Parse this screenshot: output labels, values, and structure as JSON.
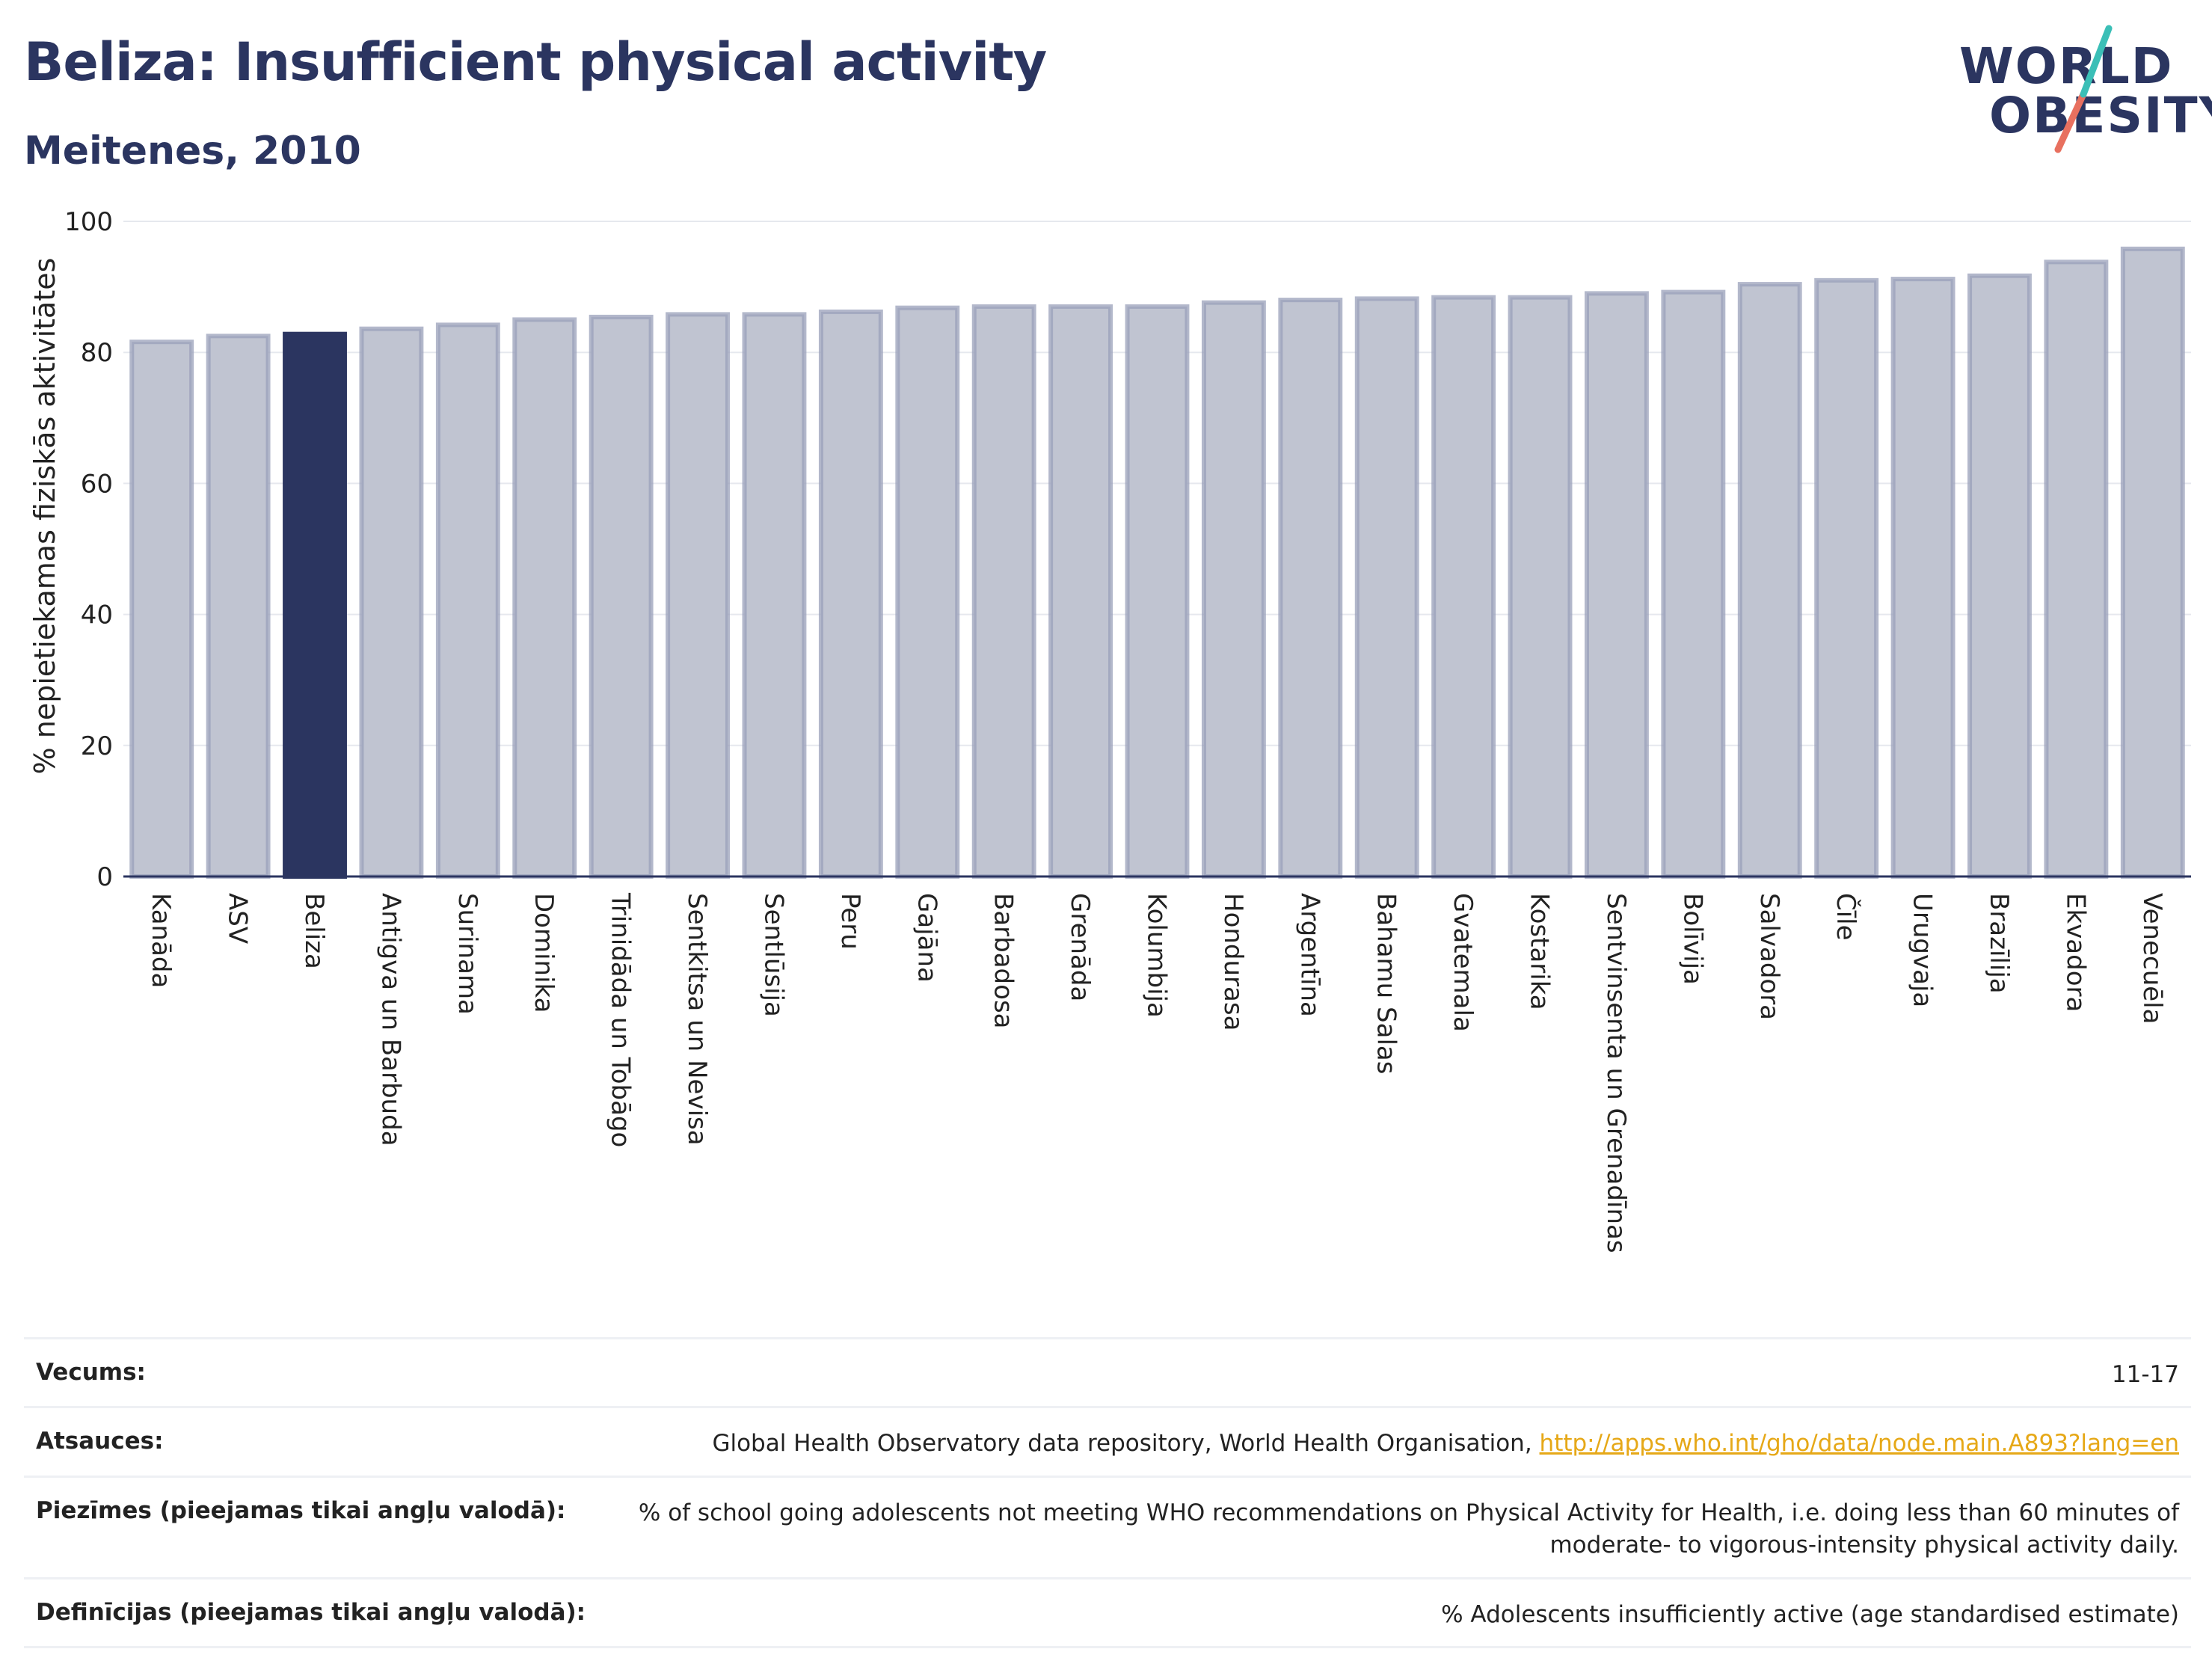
{
  "header": {
    "title": "Beliza: Insufficient physical activity",
    "subtitle": "Meitenes, 2010"
  },
  "logo": {
    "line1": "WORLD",
    "line2": "OBESITY"
  },
  "chart_data": {
    "type": "bar",
    "ylabel": "% nepietiekamas fiziskās aktivitātes",
    "ylim": [
      0,
      100
    ],
    "yticks": [
      0,
      20,
      40,
      60,
      80,
      100
    ],
    "grid": true,
    "highlight": "Beliza",
    "colors": {
      "bar": "#c0c4d1",
      "bar_edge": "#9aa0b9",
      "highlight": "#2b3560"
    },
    "categories": [
      "Kanāda",
      "ASV",
      "Beliza",
      "Antigva un Barbuda",
      "Surinama",
      "Dominika",
      "Trinidāda un Tobāgo",
      "Sentkitsa un Nevisa",
      "Sentlūsija",
      "Peru",
      "Gajāna",
      "Barbadosa",
      "Grenāda",
      "Kolumbija",
      "Hondurasa",
      "Argentīna",
      "Bahamu Salas",
      "Gvatemala",
      "Kostarika",
      "Sentvinsenta un Grenadīnas",
      "Bolīvija",
      "Salvadora",
      "Čīle",
      "Urugvaja",
      "Brazīlija",
      "Ekvadora",
      "Venecuēla"
    ],
    "values": [
      81.6,
      82.5,
      82.8,
      83.6,
      84.2,
      85.0,
      85.4,
      85.8,
      85.8,
      86.2,
      86.8,
      87.0,
      87.0,
      87.0,
      87.6,
      88.0,
      88.2,
      88.4,
      88.4,
      89.0,
      89.2,
      90.4,
      91.0,
      91.2,
      91.7,
      93.8,
      95.8
    ]
  },
  "footer": {
    "rows": [
      {
        "label": "Vecums:",
        "value": "11-17"
      },
      {
        "label": "Atsauces:",
        "value": "Global Health Observatory data repository, World Health Organisation, ",
        "link": "http://apps.who.int/gho/data/node.main.A893?lang=en"
      },
      {
        "label": "Piezīmes (pieejamas tikai angļu valodā):",
        "value": "% of school going adolescents not meeting WHO recommendations on Physical Activity for Health, i.e. doing less than 60 minutes of moderate- to vigorous-intensity physical activity daily."
      },
      {
        "label": "Definīcijas (pieejamas tikai angļu valodā):",
        "value": "% Adolescents insufficiently active (age standardised estimate)"
      }
    ]
  }
}
